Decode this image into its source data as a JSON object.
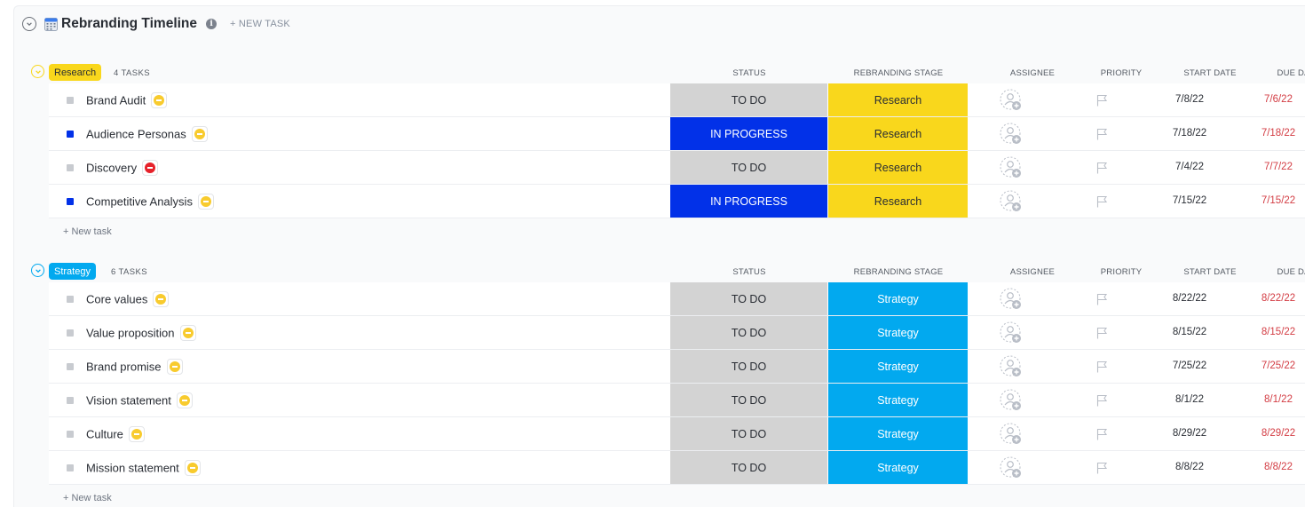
{
  "header": {
    "title": "Rebranding Timeline",
    "info": "i",
    "new_task": "+ NEW TASK"
  },
  "columns": {
    "status": "STATUS",
    "stage": "REBRANDING STAGE",
    "assignee": "ASSIGNEE",
    "priority": "PRIORITY",
    "start": "START DATE",
    "due": "DUE DATE"
  },
  "colors": {
    "todo_bg": "#d3d3d3",
    "todo_text": "#292d34",
    "in_progress_bg": "#0231e8",
    "in_progress_text": "#ffffff",
    "research": "#f9d71c",
    "strategy": "#02a9ef",
    "due_red": "#d33d44",
    "priority_normal": "#f8cb2e",
    "priority_urgent": "#e6212a"
  },
  "groups": [
    {
      "name": "Research",
      "count": "4 TASKS",
      "color": "#f9d71c",
      "text_color": "#292d34",
      "new_task": "+ New task",
      "tasks": [
        {
          "name": "Brand Audit",
          "status": "TO DO",
          "stage": "Research",
          "start": "7/8/22",
          "due": "7/6/22",
          "prio": "normal"
        },
        {
          "name": "Audience Personas",
          "status": "IN PROGRESS",
          "stage": "Research",
          "start": "7/18/22",
          "due": "7/18/22",
          "prio": "normal"
        },
        {
          "name": "Discovery",
          "status": "TO DO",
          "stage": "Research",
          "start": "7/4/22",
          "due": "7/7/22",
          "prio": "urgent"
        },
        {
          "name": "Competitive Analysis",
          "status": "IN PROGRESS",
          "stage": "Research",
          "start": "7/15/22",
          "due": "7/15/22",
          "prio": "normal"
        }
      ]
    },
    {
      "name": "Strategy",
      "count": "6 TASKS",
      "color": "#02a9ef",
      "text_color": "#ffffff",
      "new_task": "+ New task",
      "tasks": [
        {
          "name": "Core values",
          "status": "TO DO",
          "stage": "Strategy",
          "start": "8/22/22",
          "due": "8/22/22",
          "prio": "normal"
        },
        {
          "name": "Value proposition",
          "status": "TO DO",
          "stage": "Strategy",
          "start": "8/15/22",
          "due": "8/15/22",
          "prio": "normal"
        },
        {
          "name": "Brand promise",
          "status": "TO DO",
          "stage": "Strategy",
          "start": "7/25/22",
          "due": "7/25/22",
          "prio": "normal"
        },
        {
          "name": "Vision statement",
          "status": "TO DO",
          "stage": "Strategy",
          "start": "8/1/22",
          "due": "8/1/22",
          "prio": "normal"
        },
        {
          "name": "Culture",
          "status": "TO DO",
          "stage": "Strategy",
          "start": "8/29/22",
          "due": "8/29/22",
          "prio": "normal"
        },
        {
          "name": "Mission statement",
          "status": "TO DO",
          "stage": "Strategy",
          "start": "8/8/22",
          "due": "8/8/22",
          "prio": "normal"
        }
      ]
    }
  ]
}
